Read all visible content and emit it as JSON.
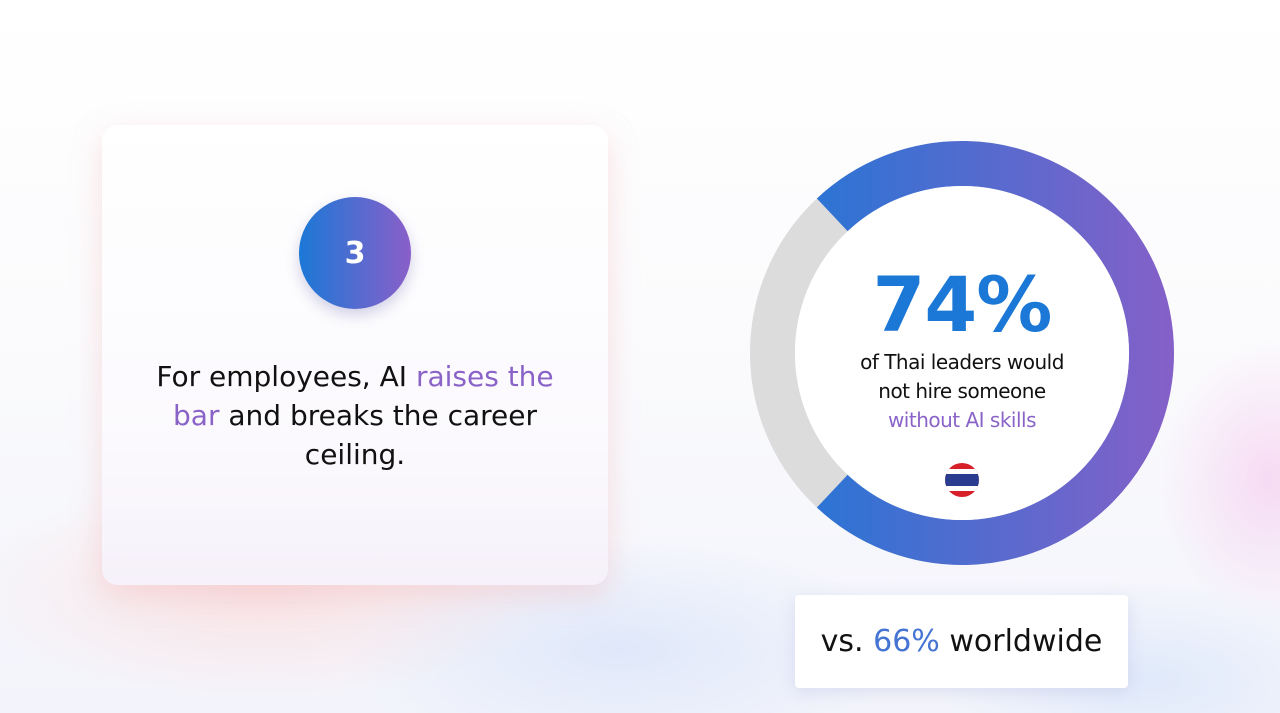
{
  "card": {
    "number": "3",
    "text": {
      "lead": "For employees, AI",
      "highlight": "raises the bar",
      "rest": "and breaks the career ceiling."
    }
  },
  "chart_data": {
    "type": "donut",
    "values": [
      74
    ],
    "value_labels": [
      "74%"
    ],
    "color": "#1b78d6",
    "description": "of Thai leaders would not hire someone",
    "description_highlight": "without AI skills"
  },
  "comparison": {
    "prefix": "vs.",
    "value": "66%",
    "suffix": "worldwide"
  }
}
